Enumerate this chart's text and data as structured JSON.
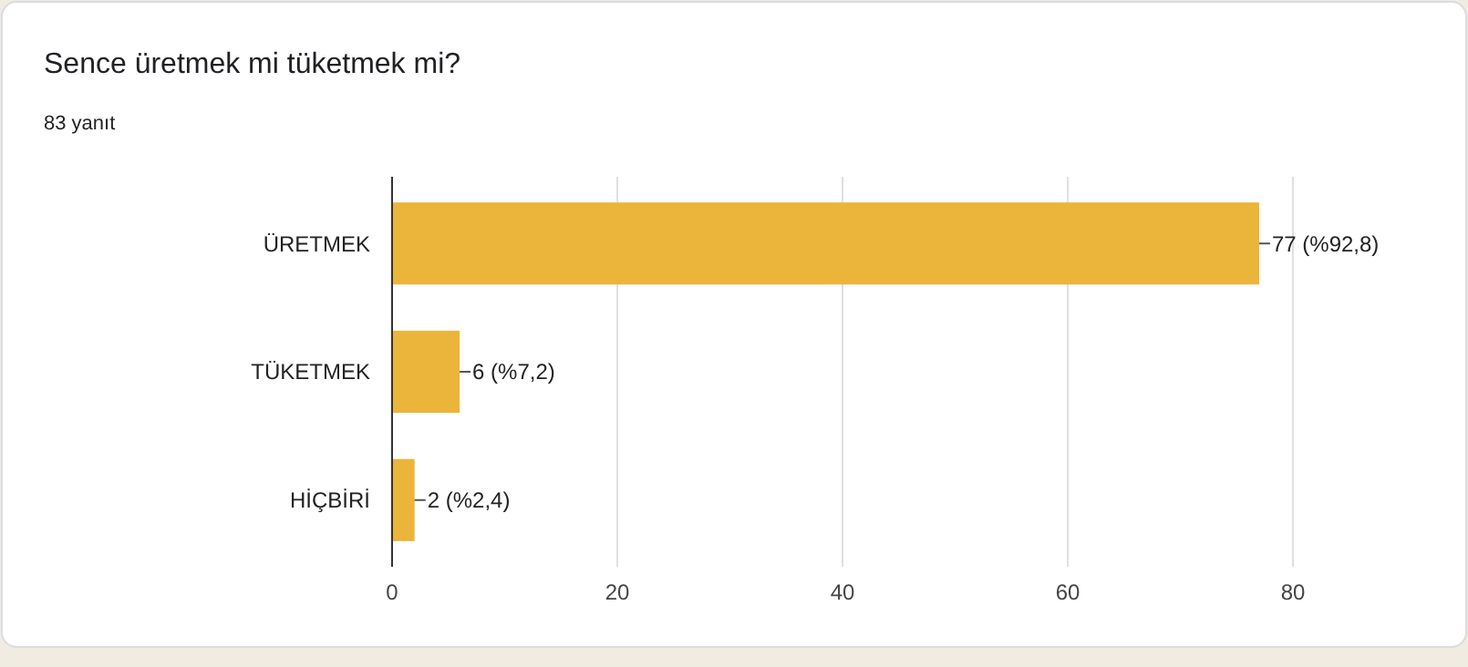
{
  "chart_data": {
    "type": "bar",
    "orientation": "horizontal",
    "title": "Sence üretmek mi tüketmek mi?",
    "subtitle": "83 yanıt",
    "categories": [
      "ÜRETMEK",
      "TÜKETMEK",
      "HİÇBİRİ"
    ],
    "values": [
      77,
      6,
      2
    ],
    "value_labels": [
      "77 (%92,8)",
      "6 (%7,2)",
      "2 (%2,4)"
    ],
    "color": "#ebb53b",
    "xlim": [
      0,
      80
    ],
    "xticks": [
      0,
      20,
      40,
      60,
      80
    ],
    "grid": "x"
  }
}
